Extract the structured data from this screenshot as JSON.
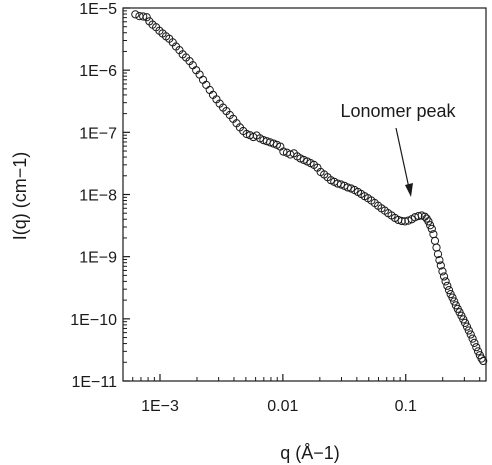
{
  "chart_data": {
    "type": "scatter",
    "title": "",
    "xlabel": "q (Å−1)",
    "ylabel": "I(q) (cm−1)",
    "x_scale": "log",
    "y_scale": "log",
    "xlim": [
      0.0005,
      0.45
    ],
    "ylim": [
      1e-11,
      1e-05
    ],
    "grid": false,
    "legend": "none",
    "marker": "open-circle",
    "colors": {
      "marker": "#1a1a1a",
      "axis": "#1a1a1a",
      "background": "#ffffff"
    },
    "x_ticks": [
      {
        "value": 0.001,
        "label": "1E−3"
      },
      {
        "value": 0.01,
        "label": "0.01"
      },
      {
        "value": 0.1,
        "label": "0.1"
      }
    ],
    "y_ticks": [
      {
        "value": 1e-05,
        "label": "1E−5"
      },
      {
        "value": 1e-06,
        "label": "1E−6"
      },
      {
        "value": 1e-07,
        "label": "1E−7"
      },
      {
        "value": 1e-08,
        "label": "1E−8"
      },
      {
        "value": 1e-09,
        "label": "1E−9"
      },
      {
        "value": 1e-10,
        "label": "1E−10"
      },
      {
        "value": 1e-11,
        "label": "1E−11"
      }
    ],
    "annotation": {
      "text": "Lonomer peak",
      "q": 0.13,
      "I": 5e-09
    },
    "series": [
      {
        "points": [
          [
            0.00063,
            7.9e-06
          ],
          [
            0.00068,
            7.4e-06
          ],
          [
            0.00073,
            7.3e-06
          ],
          [
            0.00078,
            7.1e-06
          ],
          [
            0.00082,
            6.1e-06
          ],
          [
            0.00087,
            5.4e-06
          ],
          [
            0.00093,
            4.9e-06
          ],
          [
            0.00099,
            4.3e-06
          ],
          [
            0.00105,
            3.9e-06
          ],
          [
            0.00112,
            3.5e-06
          ],
          [
            0.00119,
            3.2e-06
          ],
          [
            0.00127,
            2.8e-06
          ],
          [
            0.00135,
            2.4e-06
          ],
          [
            0.00144,
            2.1e-06
          ],
          [
            0.00153,
            1.8e-06
          ],
          [
            0.00163,
            1.6e-06
          ],
          [
            0.00174,
            1.4e-06
          ],
          [
            0.00185,
            1.2e-06
          ],
          [
            0.00197,
            1e-06
          ],
          [
            0.0021,
            8.5e-07
          ],
          [
            0.00224,
            7e-07
          ],
          [
            0.00238,
            5.8e-07
          ],
          [
            0.00254,
            4.8e-07
          ],
          [
            0.0027,
            4e-07
          ],
          [
            0.00288,
            3.4e-07
          ],
          [
            0.00306,
            2.9e-07
          ],
          [
            0.00326,
            2.5e-07
          ],
          [
            0.00347,
            2.2e-07
          ],
          [
            0.0037,
            1.9e-07
          ],
          [
            0.00394,
            1.65e-07
          ],
          [
            0.0042,
            1.4e-07
          ],
          [
            0.00447,
            1.2e-07
          ],
          [
            0.00476,
            1.05e-07
          ],
          [
            0.00507,
            9.4e-08
          ],
          [
            0.0054,
            9e-08
          ],
          [
            0.00575,
            8.4e-08
          ],
          [
            0.00612,
            8.9e-08
          ],
          [
            0.00652,
            8e-08
          ],
          [
            0.00695,
            7.5e-08
          ],
          [
            0.0074,
            7.2e-08
          ],
          [
            0.00788,
            6.9e-08
          ],
          [
            0.0084,
            6.6e-08
          ],
          [
            0.00894,
            6.3e-08
          ],
          [
            0.00953,
            5.9e-08
          ],
          [
            0.0101,
            4.9e-08
          ],
          [
            0.0108,
            4.7e-08
          ],
          [
            0.0115,
            4.4e-08
          ],
          [
            0.0123,
            4.6e-08
          ],
          [
            0.0131,
            4.1e-08
          ],
          [
            0.0139,
            3.8e-08
          ],
          [
            0.0148,
            3.6e-08
          ],
          [
            0.0158,
            3.4e-08
          ],
          [
            0.0168,
            3.2e-08
          ],
          [
            0.0179,
            3e-08
          ],
          [
            0.0191,
            2.7e-08
          ],
          [
            0.0203,
            2.3e-08
          ],
          [
            0.0217,
            2.1e-08
          ],
          [
            0.0231,
            1.9e-08
          ],
          [
            0.0246,
            1.7e-08
          ],
          [
            0.0262,
            1.6e-08
          ],
          [
            0.0279,
            1.5e-08
          ],
          [
            0.0297,
            1.45e-08
          ],
          [
            0.0317,
            1.38e-08
          ],
          [
            0.0337,
            1.3e-08
          ],
          [
            0.0359,
            1.25e-08
          ],
          [
            0.0383,
            1.18e-08
          ],
          [
            0.0408,
            1.1e-08
          ],
          [
            0.0434,
            1.02e-08
          ],
          [
            0.0463,
            9.4e-09
          ],
          [
            0.0493,
            8.7e-09
          ],
          [
            0.0525,
            8e-09
          ],
          [
            0.0559,
            7.3e-09
          ],
          [
            0.0596,
            6.6e-09
          ],
          [
            0.0635,
            6e-09
          ],
          [
            0.0676,
            5.5e-09
          ],
          [
            0.072,
            5e-09
          ],
          [
            0.0767,
            4.6e-09
          ],
          [
            0.0817,
            4.2e-09
          ],
          [
            0.087,
            3.9e-09
          ],
          [
            0.0927,
            3.75e-09
          ],
          [
            0.0987,
            3.7e-09
          ],
          [
            0.105,
            3.8e-09
          ],
          [
            0.112,
            4e-09
          ],
          [
            0.119,
            4.3e-09
          ],
          [
            0.127,
            4.5e-09
          ],
          [
            0.135,
            4.6e-09
          ],
          [
            0.143,
            4.4e-09
          ],
          [
            0.148,
            4.1e-09
          ],
          [
            0.153,
            3.7e-09
          ],
          [
            0.158,
            3.2e-09
          ],
          [
            0.163,
            2.8e-09
          ],
          [
            0.168,
            2.3e-09
          ],
          [
            0.173,
            1.8e-09
          ],
          [
            0.178,
            1.4e-09
          ],
          [
            0.183,
            1.1e-09
          ],
          [
            0.188,
            8.8e-10
          ],
          [
            0.193,
            7.2e-10
          ],
          [
            0.199,
            5.8e-10
          ],
          [
            0.205,
            4.8e-10
          ],
          [
            0.211,
            4e-10
          ],
          [
            0.218,
            3.4e-10
          ],
          [
            0.225,
            2.9e-10
          ],
          [
            0.232,
            2.5e-10
          ],
          [
            0.24,
            2.2e-10
          ],
          [
            0.248,
            1.9e-10
          ],
          [
            0.256,
            1.65e-10
          ],
          [
            0.265,
            1.45e-10
          ],
          [
            0.274,
            1.28e-10
          ],
          [
            0.284,
            1.12e-10
          ],
          [
            0.294,
            9.8e-11
          ],
          [
            0.304,
            8.6e-11
          ],
          [
            0.315,
            7.5e-11
          ],
          [
            0.326,
            6.5e-11
          ],
          [
            0.338,
            5.6e-11
          ],
          [
            0.35,
            4.8e-11
          ],
          [
            0.362,
            4.1e-11
          ],
          [
            0.375,
            3.5e-11
          ],
          [
            0.388,
            3e-11
          ],
          [
            0.401,
            2.6e-11
          ],
          [
            0.414,
            2.3e-11
          ],
          [
            0.427,
            2.1e-11
          ]
        ]
      }
    ]
  }
}
